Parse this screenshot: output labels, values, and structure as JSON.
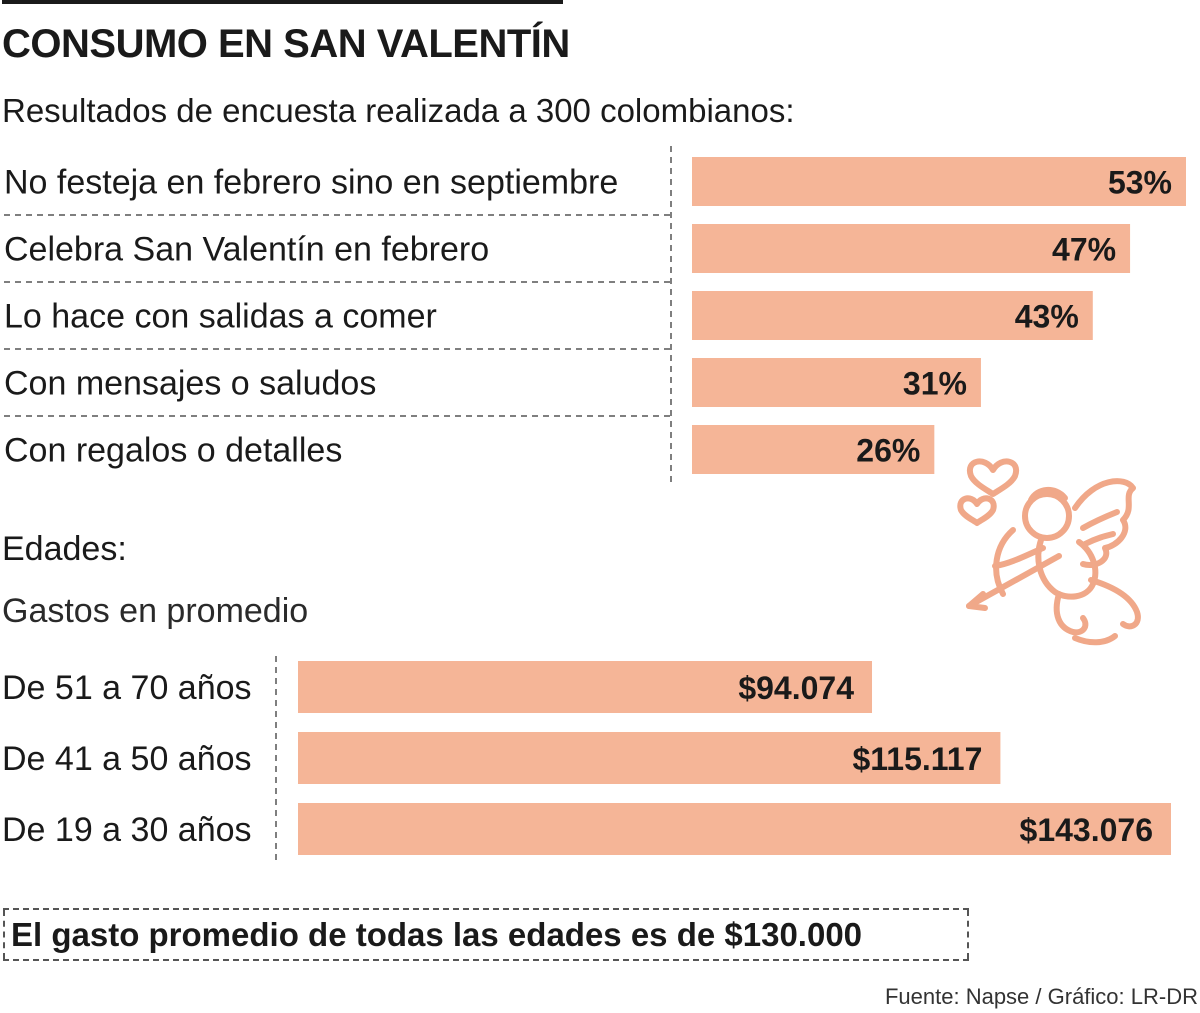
{
  "title": "CONSUMO EN SAN VALENTÍN",
  "subtitle": "Resultados de encuesta realizada a 300 colombianos:",
  "section_ages": "Edades:",
  "section_spend": "Gastos en promedio",
  "footer_note": "El gasto promedio de todas las edades es de $130.000",
  "source": "Fuente: Napse / Gráfico: LR-DR",
  "colors": {
    "bar": "#f5b597",
    "text": "#1a1a1a",
    "divider": "#555555",
    "cupid": "#f0a889"
  },
  "icons": [
    "cupid-icon"
  ],
  "chart_data": [
    {
      "type": "bar",
      "orientation": "horizontal",
      "categories": [
        "No festeja en febrero sino en septiembre",
        "Celebra San Valentín en febrero",
        "Lo hace con salidas a comer",
        "Con mensajes o saludos",
        "Con regalos o detalles"
      ],
      "values": [
        53,
        47,
        43,
        31,
        26
      ],
      "value_labels": [
        "53%",
        "47%",
        "43%",
        "31%",
        "26%"
      ],
      "xlim": [
        0,
        53
      ],
      "grid": false
    },
    {
      "type": "bar",
      "orientation": "horizontal",
      "categories": [
        "De 51 a 70 años",
        "De 41 a 50 años",
        "De 19 a 30 años"
      ],
      "values": [
        94074,
        115117,
        143076
      ],
      "value_labels": [
        "$94.074",
        "$115.117",
        "$143.076"
      ],
      "xlim": [
        0,
        143076
      ],
      "grid": false
    }
  ]
}
